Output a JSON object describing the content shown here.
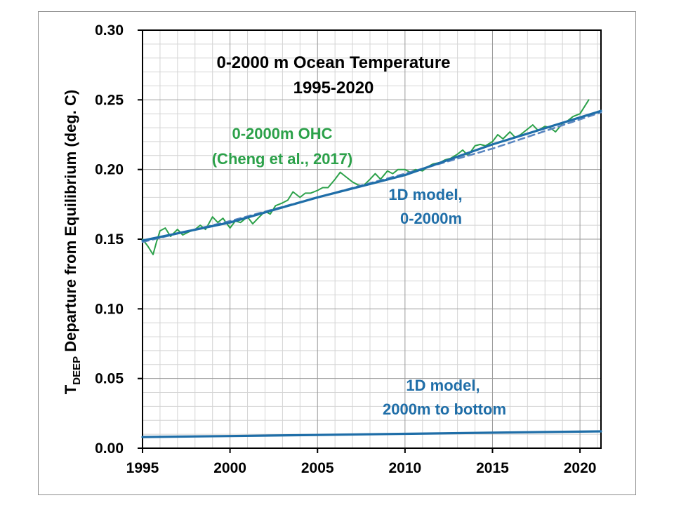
{
  "chart_data": {
    "type": "line",
    "title": [
      "0-2000 m Ocean Temperature",
      "1995-2020"
    ],
    "ylabel": {
      "prefix": "T",
      "subscript": "DEEP",
      "rest": " Departure from Equilibrium (deg. C)"
    },
    "xlim": [
      1995,
      2021.2
    ],
    "ylim": [
      0.0,
      0.3
    ],
    "xticks": [
      1995,
      2000,
      2005,
      2010,
      2015,
      2020
    ],
    "xtick_labels": [
      "1995",
      "2000",
      "2005",
      "2010",
      "2015",
      "2020"
    ],
    "yticks": [
      0.0,
      0.05,
      0.1,
      0.15,
      0.2,
      0.25,
      0.3
    ],
    "ytick_labels": [
      "0.00",
      "0.05",
      "0.10",
      "0.15",
      "0.20",
      "0.25",
      "0.30"
    ],
    "grid": true,
    "annotations": {
      "ohc": [
        "0-2000m OHC",
        "(Cheng et al., 2017)"
      ],
      "model_upper": [
        "1D model,",
        "0-2000m"
      ],
      "model_deep": [
        "1D model,",
        "2000m to bottom"
      ]
    },
    "colors": {
      "ohc": "#2ca14a",
      "model": "#1f6ea8",
      "model_fit": "#5a86c0"
    },
    "series": [
      {
        "key": "ohc",
        "style": "solid",
        "x": [
          1995.0,
          1995.3,
          1995.6,
          1995.8,
          1996.0,
          1996.3,
          1996.6,
          1997.0,
          1997.3,
          1997.6,
          1998.0,
          1998.3,
          1998.6,
          1999.0,
          1999.3,
          1999.6,
          2000.0,
          2000.3,
          2000.6,
          2001.0,
          2001.3,
          2001.6,
          2002.0,
          2002.3,
          2002.6,
          2003.0,
          2003.3,
          2003.6,
          2004.0,
          2004.3,
          2004.6,
          2005.0,
          2005.3,
          2005.6,
          2006.0,
          2006.3,
          2006.6,
          2007.0,
          2007.3,
          2007.6,
          2008.0,
          2008.3,
          2008.6,
          2009.0,
          2009.3,
          2009.6,
          2010.0,
          2010.3,
          2010.6,
          2011.0,
          2011.3,
          2011.6,
          2012.0,
          2012.3,
          2012.6,
          2013.0,
          2013.3,
          2013.6,
          2014.0,
          2014.3,
          2014.6,
          2015.0,
          2015.3,
          2015.6,
          2016.0,
          2016.3,
          2016.6,
          2017.0,
          2017.3,
          2017.6,
          2018.0,
          2018.3,
          2018.6,
          2019.0,
          2019.3,
          2019.6,
          2020.0,
          2020.3,
          2020.5
        ],
        "y": [
          0.15,
          0.145,
          0.139,
          0.148,
          0.156,
          0.158,
          0.152,
          0.157,
          0.153,
          0.155,
          0.157,
          0.16,
          0.157,
          0.166,
          0.162,
          0.165,
          0.158,
          0.163,
          0.162,
          0.166,
          0.161,
          0.165,
          0.17,
          0.168,
          0.174,
          0.176,
          0.178,
          0.184,
          0.18,
          0.183,
          0.183,
          0.185,
          0.187,
          0.187,
          0.193,
          0.198,
          0.195,
          0.191,
          0.189,
          0.188,
          0.193,
          0.197,
          0.193,
          0.199,
          0.197,
          0.2,
          0.2,
          0.198,
          0.2,
          0.199,
          0.202,
          0.204,
          0.205,
          0.207,
          0.208,
          0.211,
          0.214,
          0.21,
          0.217,
          0.218,
          0.217,
          0.22,
          0.225,
          0.222,
          0.227,
          0.223,
          0.225,
          0.229,
          0.232,
          0.228,
          0.231,
          0.23,
          0.227,
          0.233,
          0.235,
          0.238,
          0.24,
          0.246,
          0.25
        ]
      },
      {
        "key": "model_fit",
        "style": "dashed",
        "x": [
          1995.0,
          2000.0,
          2005.0,
          2010.0,
          2015.0,
          2021.2
        ],
        "y": [
          0.148,
          0.163,
          0.18,
          0.197,
          0.215,
          0.241
        ]
      },
      {
        "key": "model",
        "style": "solid",
        "x": [
          1995.0,
          2000.0,
          2005.0,
          2010.0,
          2015.0,
          2021.2
        ],
        "y": [
          0.149,
          0.162,
          0.18,
          0.196,
          0.218,
          0.242
        ]
      },
      {
        "key": "model",
        "style": "solid",
        "x": [
          1995.0,
          2000.0,
          2005.0,
          2010.0,
          2015.0,
          2021.2
        ],
        "y": [
          0.008,
          0.0087,
          0.0095,
          0.0103,
          0.0111,
          0.0121
        ]
      }
    ]
  }
}
